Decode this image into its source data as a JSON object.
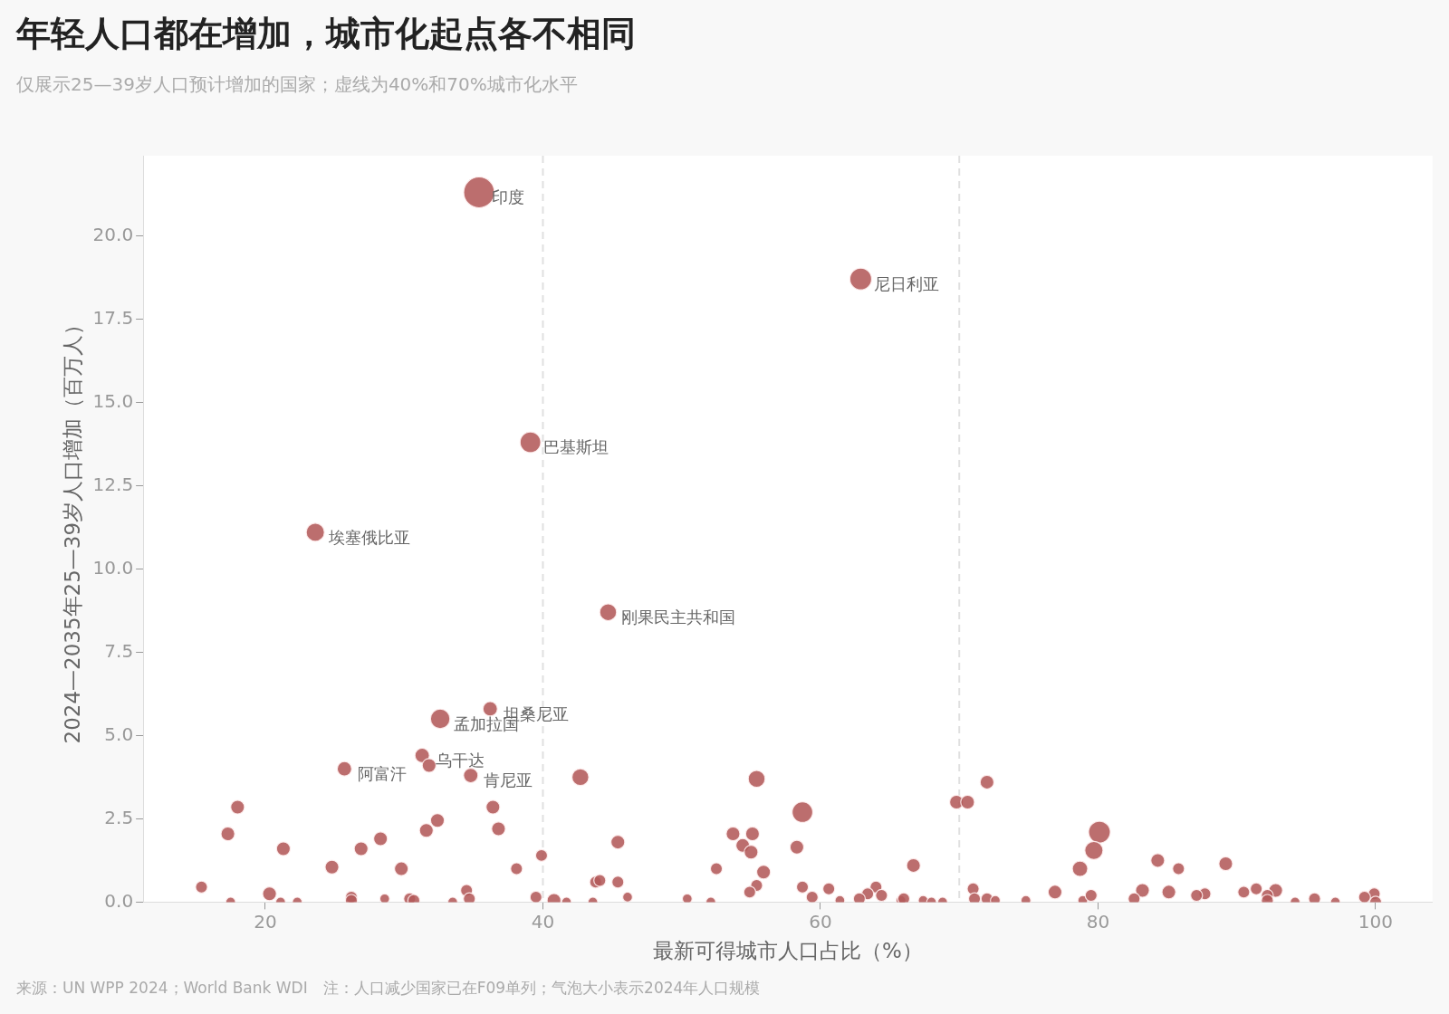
{
  "chart_data": {
    "type": "bubble",
    "title": "年轻人口都在增加，城市化起点各不相同",
    "subtitle": "仅展示25—39岁人口预计增加的国家；虚线为40%和70%城市化水平",
    "xlabel": "最新可得城市人口占比（%）",
    "ylabel": "2024—2035年25—39岁人口增加（百万人）",
    "xlim": [
      11.2,
      104.1
    ],
    "ylim": [
      0,
      22.4
    ],
    "xticks": [
      20,
      40,
      60,
      80,
      100
    ],
    "yticks": [
      {
        "value": 0,
        "label": "0.0"
      },
      {
        "value": 2.5,
        "label": "2.5"
      },
      {
        "value": 5,
        "label": "5.0"
      },
      {
        "value": 7.5,
        "label": "7.5"
      },
      {
        "value": 10,
        "label": "10.0"
      },
      {
        "value": 12.5,
        "label": "12.5"
      },
      {
        "value": 15,
        "label": "15.0"
      },
      {
        "value": 17.5,
        "label": "17.5"
      },
      {
        "value": 20,
        "label": "20.0"
      }
    ],
    "grid": false,
    "legend": false,
    "marker": "circle",
    "ref_lines": [
      {
        "axis": "x",
        "value": 40,
        "color": "#e0e0e0",
        "line_style": "dashed"
      },
      {
        "axis": "x",
        "value": 70,
        "color": "#e0e0e0",
        "line_style": "dashed"
      }
    ],
    "series": [
      {
        "color": "#b35a5a",
        "x": [
          35.4,
          62.9,
          39.1,
          23.6,
          44.7,
          36.2,
          32.6,
          31.3,
          25.7,
          34.8,
          31.8,
          42.7,
          55.4,
          72.0,
          18.0,
          36.4,
          58.7,
          69.8,
          70.6,
          17.3,
          32.4,
          31.6,
          36.8,
          28.3,
          26.9,
          21.3,
          53.7,
          55.1,
          54.4,
          55.0,
          58.3,
          45.4,
          80.1,
          79.7,
          78.7,
          84.3,
          85.8,
          89.2,
          39.9,
          24.8,
          29.8,
          38.1,
          52.5,
          55.9,
          66.7,
          15.4,
          20.3,
          26.2,
          43.8,
          44.1,
          45.4,
          34.5,
          58.7,
          60.6,
          55.4,
          54.9,
          64.0,
          63.4,
          71.0,
          76.9,
          83.2,
          85.1,
          87.7,
          87.1,
          90.5,
          91.4,
          92.8,
          92.2,
          99.9,
          99.2,
          95.6,
          17.5,
          21.1,
          22.3,
          26.2,
          28.6,
          30.4,
          30.7,
          33.5,
          34.7,
          39.5,
          40.8,
          41.7,
          43.6,
          46.1,
          50.4,
          52.1,
          59.4,
          61.4,
          62.8,
          64.4,
          65.8,
          66.0,
          67.4,
          68.0,
          68.8,
          71.1,
          72.0,
          72.6,
          74.8,
          78.9,
          79.5,
          82.6,
          92.2,
          94.2,
          97.1,
          100
        ],
        "values": [
          21.3,
          18.7,
          13.8,
          11.1,
          8.7,
          5.8,
          5.5,
          4.4,
          4.0,
          3.8,
          4.1,
          3.75,
          3.7,
          3.6,
          2.85,
          2.85,
          2.7,
          3.0,
          3.0,
          2.05,
          2.45,
          2.15,
          2.2,
          1.9,
          1.6,
          1.6,
          2.05,
          2.05,
          1.7,
          1.5,
          1.65,
          1.8,
          2.1,
          1.55,
          1.0,
          1.25,
          1.0,
          1.15,
          1.4,
          1.05,
          1.0,
          1.0,
          1.0,
          0.9,
          1.1,
          0.45,
          0.25,
          0.15,
          0.6,
          0.65,
          0.6,
          0.35,
          0.45,
          0.4,
          0.5,
          0.3,
          0.45,
          0.25,
          0.4,
          0.3,
          0.35,
          0.3,
          0.25,
          0.2,
          0.3,
          0.4,
          0.35,
          0.2,
          0.25,
          0.15,
          0.1,
          0,
          0,
          0,
          0.05,
          0.1,
          0.1,
          0.05,
          0,
          0.1,
          0.15,
          0.05,
          0,
          0,
          0.15,
          0.1,
          0,
          0.15,
          0.05,
          0.1,
          0.2,
          0.05,
          0.1,
          0.05,
          0,
          0,
          0.1,
          0.1,
          0.05,
          0.05,
          0.05,
          0.2,
          0.1,
          0.05,
          0,
          0,
          0
        ],
        "sizes": [
          1,
          0.5,
          0.45,
          0.35,
          0.3,
          0.22,
          0.4,
          0.22,
          0.22,
          0.22,
          0.2,
          0.3,
          0.3,
          0.2,
          0.2,
          0.2,
          0.45,
          0.2,
          0.2,
          0.2,
          0.2,
          0.2,
          0.2,
          0.2,
          0.2,
          0.2,
          0.2,
          0.2,
          0.2,
          0.2,
          0.2,
          0.2,
          0.5,
          0.35,
          0.25,
          0.2,
          0.15,
          0.2,
          0.15,
          0.2,
          0.2,
          0.15,
          0.15,
          0.2,
          0.2,
          0.15,
          0.2,
          0.15,
          0.15,
          0.15,
          0.15,
          0.15,
          0.15,
          0.15,
          0.15,
          0.15,
          0.15,
          0.15,
          0.15,
          0.2,
          0.2,
          0.2,
          0.15,
          0.15,
          0.15,
          0.15,
          0.2,
          0.15,
          0.15,
          0.15,
          0.15,
          0.1,
          0.1,
          0.1,
          0.15,
          0.1,
          0.15,
          0.15,
          0.1,
          0.15,
          0.15,
          0.2,
          0.1,
          0.1,
          0.1,
          0.1,
          0.1,
          0.15,
          0.1,
          0.15,
          0.15,
          0.1,
          0.15,
          0.1,
          0.1,
          0.1,
          0.15,
          0.15,
          0.1,
          0.1,
          0.1,
          0.15,
          0.15,
          0.15,
          0.1,
          0.1,
          0.15
        ]
      }
    ],
    "annotations": [
      {
        "text": "印度",
        "x": 35.4,
        "y": 21.3
      },
      {
        "text": "尼日利亚",
        "x": 62.9,
        "y": 18.7
      },
      {
        "text": "巴基斯坦",
        "x": 39.1,
        "y": 13.8
      },
      {
        "text": "埃塞俄比亚",
        "x": 23.6,
        "y": 11.1
      },
      {
        "text": "刚果民主共和国",
        "x": 44.7,
        "y": 8.7
      },
      {
        "text": "坦桑尼亚",
        "x": 36.2,
        "y": 5.8
      },
      {
        "text": "孟加拉国",
        "x": 32.6,
        "y": 5.5
      },
      {
        "text": "乌干达",
        "x": 31.3,
        "y": 4.4
      },
      {
        "text": "阿富汗",
        "x": 25.7,
        "y": 4.0
      },
      {
        "text": "肯尼亚",
        "x": 34.8,
        "y": 3.8
      },
      "来源：UN WPP 2024；World Bank WDI　注：人口减少国家已在F09单列；气泡大小表示2024年人口规模"
    ]
  }
}
